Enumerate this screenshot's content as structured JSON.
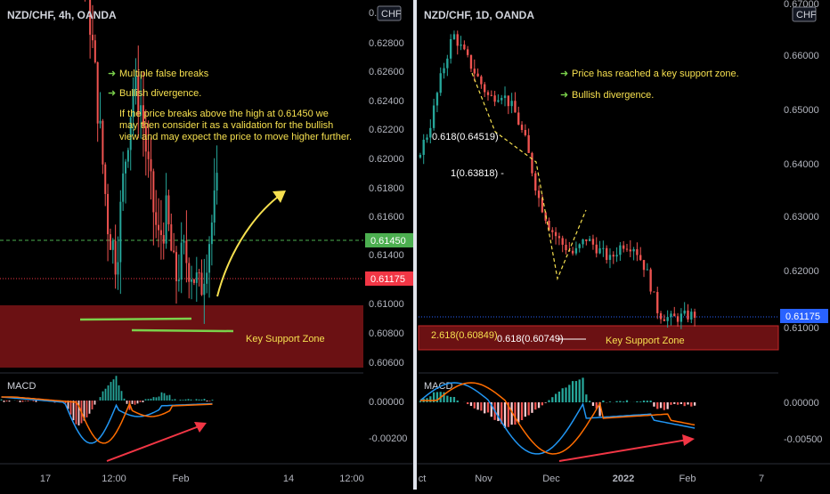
{
  "colors": {
    "up": "#26a69a",
    "down": "#ef5350",
    "support": "#6b1113",
    "supportEdge": "#c62828",
    "annot": "#f6e04f",
    "arrowGreen": "#7bd14b",
    "price": "#f23645",
    "green": "#4caf50",
    "blue": "#2962ff",
    "macd": "#2196f3",
    "signal": "#ff6d00"
  },
  "left": {
    "title": "NZD/CHF, 4h, OANDA",
    "currency": "CHF",
    "price_ticks": [
      "0.62800",
      "0.62600",
      "0.62400",
      "0.62200",
      "0.62000",
      "0.61800",
      "0.61600",
      "0.61450",
      "0.61400",
      "0.61175",
      "0.61000",
      "0.60800",
      "0.60600"
    ],
    "macd_label": "MACD",
    "macd_ticks": [
      "0.00000",
      "-0.00200"
    ],
    "time_ticks": [
      "17",
      "12:00",
      "Feb",
      "14",
      "12:00"
    ],
    "notes": [
      "Multiple false breaks",
      "Bullish divergence.",
      "If the price breaks above the high at 0.61450 we",
      "may then consider it as a validation for the bullish",
      "view and may expect the price to move higher further."
    ],
    "support_label": "Key Support Zone",
    "level_label": "0.61450",
    "price_label": "0.61175"
  },
  "right": {
    "title": "NZD/CHF, 1D, OANDA",
    "currency": "CHF",
    "price_ticks": [
      "0.67000",
      "0.66000",
      "0.65000",
      "0.64000",
      "0.63000",
      "0.62000",
      "0.61000"
    ],
    "macd_label": "MACD",
    "macd_ticks": [
      "0.00000",
      "-0.00500"
    ],
    "time_ticks": [
      "ct",
      "Nov",
      "Dec",
      "2022",
      "Feb",
      "7"
    ],
    "notes": [
      "Price has reached a key support zone.",
      "Bullish divergence."
    ],
    "fib_labels": [
      "0.618(0.64519)",
      "1(0.63818) -",
      "2.618(0.60849)",
      "0.618(0.60749)"
    ],
    "support_label": "Key Support Zone",
    "price_label": "0.61175"
  },
  "chart_data": [
    {
      "type": "candlestick",
      "title": "NZD/CHF, 4h, OANDA",
      "ylim": [
        0.6055,
        0.6325
      ],
      "horizontal_levels": [
        0.6145,
        0.61175
      ],
      "support_zone": [
        0.6062,
        0.61
      ],
      "x_ticks": [
        "17",
        "12:00",
        "Feb",
        "14",
        "12:00"
      ],
      "close_path": [
        0.6275,
        0.6283,
        0.626,
        0.624,
        0.6225,
        0.6215,
        0.622,
        0.6205,
        0.6222,
        0.621,
        0.618,
        0.616,
        0.6135,
        0.611,
        0.61,
        0.6125,
        0.6145,
        0.614,
        0.612,
        0.6105,
        0.6112,
        0.6095,
        0.6102,
        0.6098,
        0.6092,
        0.6105,
        0.6118
      ]
    },
    {
      "type": "candlestick",
      "title": "NZD/CHF, 1D, OANDA",
      "ylim": [
        0.6045,
        0.6715
      ],
      "horizontal_levels": [
        0.61175
      ],
      "support_zone": [
        0.606,
        0.61
      ],
      "x_ticks": [
        "ct",
        "Nov",
        "Dec",
        "2022",
        "Feb",
        "7"
      ],
      "close_path": [
        0.641,
        0.646,
        0.656,
        0.664,
        0.66,
        0.656,
        0.652,
        0.653,
        0.65,
        0.644,
        0.634,
        0.628,
        0.625,
        0.623,
        0.626,
        0.624,
        0.622,
        0.625,
        0.6245,
        0.62,
        0.612,
        0.611,
        0.6115,
        0.6118
      ]
    }
  ]
}
